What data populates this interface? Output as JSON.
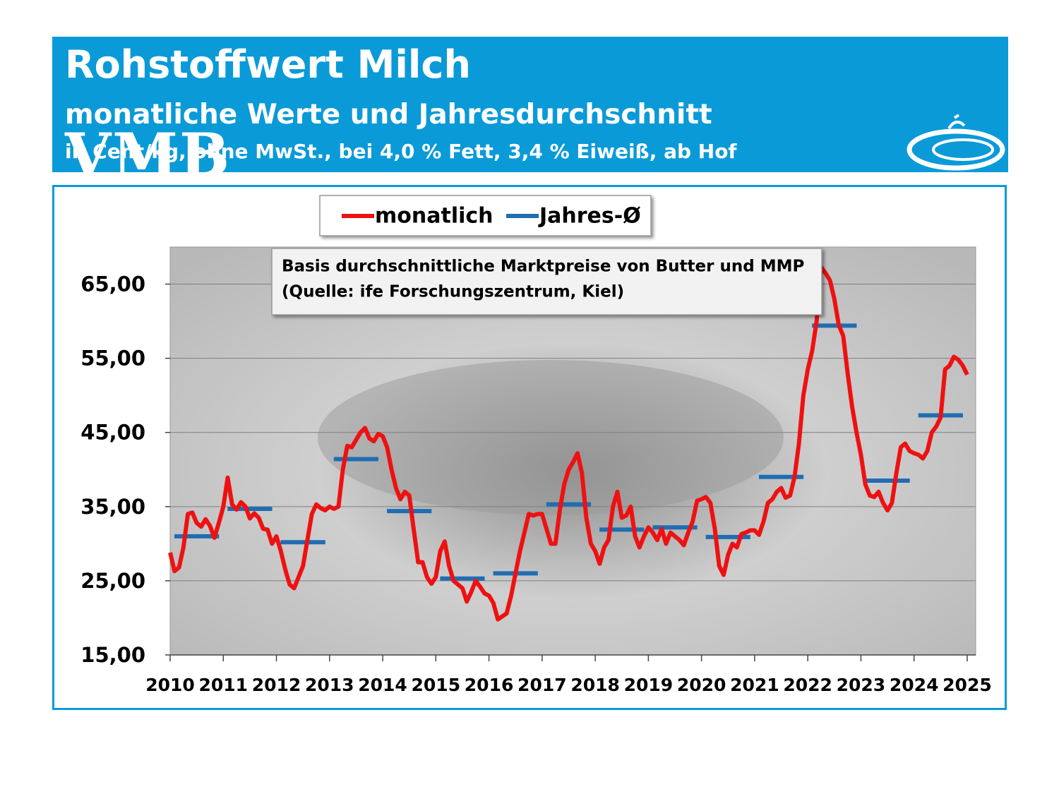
{
  "header": {
    "title": "Rohstoffwert Milch",
    "subtitle": "monatliche Werte und Jahresdurchschnitt",
    "unit_note": "in Cent/kg, ohne MwSt., bei 4,0 % Fett, 3,4 % Eiweiß, ab Hof",
    "logo": "VMB"
  },
  "chart_data": {
    "type": "line",
    "annotation": [
      "Basis durchschnittliche Marktpreise von Butter und MMP",
      "(Quelle: ife Forschungszentrum, Kiel)"
    ],
    "legend": "top",
    "grid": true,
    "xlim": [
      2010,
      2025.16
    ],
    "xticks": [
      2010,
      2011,
      2012,
      2013,
      2014,
      2015,
      2016,
      2017,
      2018,
      2019,
      2020,
      2021,
      2022,
      2023,
      2024,
      2025
    ],
    "ylim": [
      15,
      70
    ],
    "yticks": [
      {
        "value": 15,
        "label": "15,00"
      },
      {
        "value": 25,
        "label": "25,00"
      },
      {
        "value": 35,
        "label": "35,00"
      },
      {
        "value": 45,
        "label": "45,00"
      },
      {
        "value": 55,
        "label": "55,00"
      },
      {
        "value": 65,
        "label": "65,00"
      }
    ],
    "series": [
      {
        "name": "monatlich",
        "color": "#ee1111",
        "x": [
          2010,
          2010.083,
          2010.167,
          2010.25,
          2010.333,
          2010.417,
          2010.5,
          2010.583,
          2010.667,
          2010.75,
          2010.833,
          2010.917,
          2011,
          2011.083,
          2011.167,
          2011.25,
          2011.333,
          2011.417,
          2011.5,
          2011.583,
          2011.667,
          2011.75,
          2011.833,
          2011.917,
          2012,
          2012.083,
          2012.167,
          2012.25,
          2012.333,
          2012.417,
          2012.5,
          2012.583,
          2012.667,
          2012.75,
          2012.833,
          2012.917,
          2013,
          2013.083,
          2013.167,
          2013.25,
          2013.333,
          2013.417,
          2013.5,
          2013.583,
          2013.667,
          2013.75,
          2013.833,
          2013.917,
          2014,
          2014.083,
          2014.167,
          2014.25,
          2014.333,
          2014.417,
          2014.5,
          2014.583,
          2014.667,
          2014.75,
          2014.833,
          2014.917,
          2015,
          2015.083,
          2015.167,
          2015.25,
          2015.333,
          2015.417,
          2015.5,
          2015.583,
          2015.667,
          2015.75,
          2015.833,
          2015.917,
          2016,
          2016.083,
          2016.167,
          2016.25,
          2016.333,
          2016.417,
          2016.5,
          2016.583,
          2016.667,
          2016.75,
          2016.833,
          2016.917,
          2017,
          2017.083,
          2017.167,
          2017.25,
          2017.333,
          2017.417,
          2017.5,
          2017.583,
          2017.667,
          2017.75,
          2017.833,
          2017.917,
          2018,
          2018.083,
          2018.167,
          2018.25,
          2018.333,
          2018.417,
          2018.5,
          2018.583,
          2018.667,
          2018.75,
          2018.833,
          2018.917,
          2019,
          2019.083,
          2019.167,
          2019.25,
          2019.333,
          2019.417,
          2019.5,
          2019.583,
          2019.667,
          2019.75,
          2019.833,
          2019.917,
          2020,
          2020.083,
          2020.167,
          2020.25,
          2020.333,
          2020.417,
          2020.5,
          2020.583,
          2020.667,
          2020.75,
          2020.833,
          2020.917,
          2021,
          2021.083,
          2021.167,
          2021.25,
          2021.333,
          2021.417,
          2021.5,
          2021.583,
          2021.667,
          2021.75,
          2021.833,
          2021.917,
          2022,
          2022.083,
          2022.167,
          2022.25,
          2022.333,
          2022.417,
          2022.5,
          2022.583,
          2022.667,
          2022.75,
          2022.833,
          2022.917,
          2023,
          2023.083,
          2023.167,
          2023.25,
          2023.333,
          2023.417,
          2023.5,
          2023.583,
          2023.667,
          2023.75,
          2023.833,
          2023.917,
          2024,
          2024.083,
          2024.167,
          2024.25,
          2024.333,
          2024.417,
          2024.5,
          2024.583,
          2024.667,
          2024.75,
          2024.833,
          2024.917,
          2025
        ],
        "values": [
          28.8,
          26.3,
          26.8,
          29.5,
          34.0,
          34.2,
          32.8,
          32.3,
          33.3,
          32.4,
          30.8,
          32.8,
          35.0,
          38.9,
          35.3,
          34.6,
          35.6,
          35.0,
          33.4,
          34.1,
          33.5,
          32.0,
          31.9,
          30.0,
          31.0,
          29.0,
          26.5,
          24.5,
          24.0,
          25.5,
          27.0,
          30.5,
          34.0,
          35.3,
          34.8,
          34.5,
          35.0,
          34.7,
          35.0,
          40.0,
          43.2,
          43.0,
          44.0,
          45.0,
          45.6,
          44.2,
          43.8,
          44.8,
          44.5,
          43.0,
          40.0,
          37.5,
          36.0,
          37.0,
          36.5,
          32.0,
          27.5,
          27.5,
          25.5,
          24.6,
          25.5,
          29.0,
          30.3,
          27.0,
          25.0,
          24.5,
          24.0,
          22.2,
          23.5,
          25.0,
          24.2,
          23.3,
          23.0,
          22.0,
          19.8,
          20.2,
          20.6,
          23.0,
          26.0,
          29.0,
          31.5,
          34.0,
          33.8,
          34.0,
          34.0,
          32.0,
          30.0,
          30.0,
          34.5,
          38.0,
          40.0,
          41.0,
          42.2,
          39.5,
          33.5,
          30.0,
          29.0,
          27.3,
          29.5,
          30.5,
          35.0,
          37.0,
          33.5,
          33.8,
          35.0,
          31.0,
          29.5,
          31.0,
          32.2,
          31.5,
          30.5,
          32.0,
          30.0,
          31.5,
          31.0,
          30.5,
          29.8,
          31.5,
          33.0,
          35.8,
          36.0,
          36.3,
          35.5,
          32.0,
          27.0,
          25.8,
          28.5,
          30.0,
          29.5,
          31.3,
          31.5,
          31.8,
          31.8,
          31.2,
          33.0,
          35.5,
          36.0,
          37.0,
          37.5,
          36.2,
          36.5,
          39.0,
          43.5,
          50.0,
          53.5,
          56.0,
          60.0,
          67.3,
          66.5,
          65.5,
          63.0,
          59.5,
          58.0,
          53.0,
          48.5,
          45.0,
          42.0,
          38.0,
          36.5,
          36.3,
          37.0,
          35.5,
          34.5,
          35.5,
          39.5,
          43.0,
          43.5,
          42.5,
          42.2,
          42.0,
          41.5,
          42.5,
          45.0,
          45.8,
          47.0,
          53.5,
          54.0,
          55.2,
          54.8,
          54.0,
          52.8
        ]
      },
      {
        "name": "Jahres-Ø",
        "color": "#1f6db3",
        "x": [
          2010,
          2011,
          2012,
          2013,
          2014,
          2015,
          2016,
          2017,
          2018,
          2019,
          2020,
          2021,
          2022,
          2023,
          2024
        ],
        "values": [
          31.0,
          34.7,
          30.2,
          41.4,
          34.4,
          25.3,
          26.0,
          35.3,
          31.9,
          32.2,
          30.9,
          39.0,
          59.4,
          38.5,
          47.3
        ]
      }
    ]
  }
}
